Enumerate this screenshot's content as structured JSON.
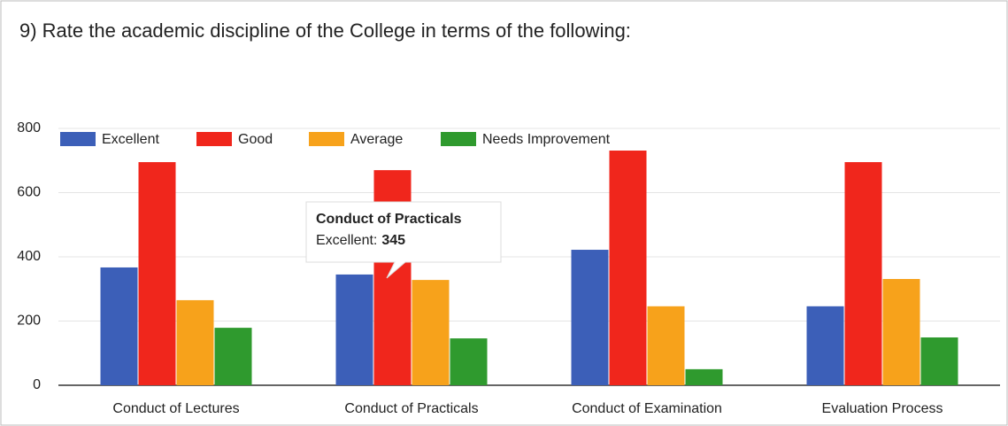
{
  "chart_data": {
    "type": "bar",
    "title": "9) Rate the academic discipline of the College in terms of the following:",
    "categories": [
      "Conduct of Lectures",
      "Conduct of Practicals",
      "Conduct of Examination",
      "Evaluation Process"
    ],
    "series": [
      {
        "name": "Excellent",
        "color": "#3c5fb8",
        "values": [
          367,
          345,
          422,
          246
        ]
      },
      {
        "name": "Good",
        "color": "#f0261c",
        "values": [
          695,
          670,
          731,
          695
        ]
      },
      {
        "name": "Average",
        "color": "#f7a21b",
        "values": [
          265,
          328,
          246,
          331
        ]
      },
      {
        "name": "Needs Improvement",
        "color": "#2f9a2e",
        "values": [
          179,
          146,
          50,
          149
        ]
      }
    ],
    "ylim": [
      0,
      800
    ],
    "yticks": [
      0,
      200,
      400,
      600,
      800
    ],
    "grid": true,
    "legend": "top",
    "tooltip": {
      "title": "Conduct of Practicals",
      "label": "Excellent:",
      "value": 345
    }
  }
}
